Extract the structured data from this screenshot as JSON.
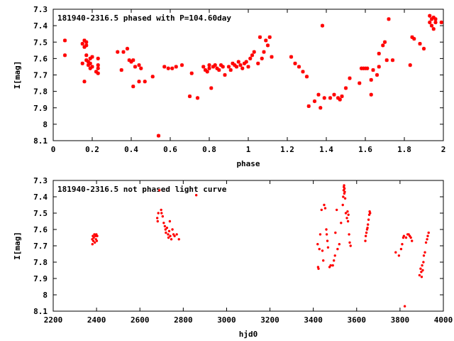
{
  "chart_data": [
    {
      "type": "scatter",
      "title": "181940-2316.5 phased with P=104.60day",
      "xlabel": "phase",
      "ylabel": "I[mag]",
      "xlim": [
        0,
        2
      ],
      "ylim": [
        7.3,
        8.1
      ],
      "y_inverted": true,
      "xticks": [
        "0",
        "0.2",
        "0.4",
        "0.6",
        "0.8",
        "1",
        "1.2",
        "1.4",
        "1.6",
        "1.8",
        "2"
      ],
      "yticks": [
        "7.3",
        "7.4",
        "7.5",
        "7.6",
        "7.7",
        "7.8",
        "7.9",
        "8",
        "8.1"
      ],
      "marker": "star",
      "color": "#ff0000",
      "points": [
        [
          0.06,
          7.49
        ],
        [
          0.06,
          7.58
        ],
        [
          0.15,
          7.51
        ],
        [
          0.16,
          7.49
        ],
        [
          0.16,
          7.53
        ],
        [
          0.17,
          7.5
        ],
        [
          0.17,
          7.52
        ],
        [
          0.15,
          7.63
        ],
        [
          0.16,
          7.74
        ],
        [
          0.17,
          7.58
        ],
        [
          0.17,
          7.61
        ],
        [
          0.18,
          7.62
        ],
        [
          0.18,
          7.64
        ],
        [
          0.19,
          7.6
        ],
        [
          0.19,
          7.63
        ],
        [
          0.2,
          7.59
        ],
        [
          0.2,
          7.65
        ],
        [
          0.19,
          7.66
        ],
        [
          0.23,
          7.6
        ],
        [
          0.23,
          7.66
        ],
        [
          0.22,
          7.68
        ],
        [
          0.23,
          7.69
        ],
        [
          0.23,
          7.64
        ],
        [
          0.33,
          7.56
        ],
        [
          0.35,
          7.67
        ],
        [
          0.36,
          7.56
        ],
        [
          0.38,
          7.54
        ],
        [
          0.39,
          7.61
        ],
        [
          0.4,
          7.62
        ],
        [
          0.41,
          7.61
        ],
        [
          0.42,
          7.65
        ],
        [
          0.41,
          7.77
        ],
        [
          0.44,
          7.64
        ],
        [
          0.44,
          7.74
        ],
        [
          0.45,
          7.66
        ],
        [
          0.47,
          7.74
        ],
        [
          0.51,
          7.71
        ],
        [
          0.54,
          8.07
        ],
        [
          0.57,
          7.65
        ],
        [
          0.59,
          7.66
        ],
        [
          0.61,
          7.66
        ],
        [
          0.63,
          7.65
        ],
        [
          0.66,
          7.64
        ],
        [
          0.7,
          7.83
        ],
        [
          0.71,
          7.69
        ],
        [
          0.74,
          7.84
        ],
        [
          0.77,
          7.65
        ],
        [
          0.78,
          7.67
        ],
        [
          0.79,
          7.68
        ],
        [
          0.8,
          7.64
        ],
        [
          0.8,
          7.66
        ],
        [
          0.81,
          7.78
        ],
        [
          0.82,
          7.65
        ],
        [
          0.83,
          7.64
        ],
        [
          0.84,
          7.66
        ],
        [
          0.85,
          7.67
        ],
        [
          0.86,
          7.64
        ],
        [
          0.87,
          7.65
        ],
        [
          0.88,
          7.7
        ],
        [
          0.9,
          7.65
        ],
        [
          0.91,
          7.67
        ],
        [
          0.92,
          7.63
        ],
        [
          0.93,
          7.64
        ],
        [
          0.94,
          7.65
        ],
        [
          0.95,
          7.62
        ],
        [
          0.96,
          7.64
        ],
        [
          0.97,
          7.66
        ],
        [
          0.98,
          7.63
        ],
        [
          0.99,
          7.62
        ],
        [
          1.0,
          7.65
        ],
        [
          1.01,
          7.6
        ],
        [
          1.02,
          7.58
        ],
        [
          1.03,
          7.56
        ],
        [
          1.05,
          7.63
        ],
        [
          1.06,
          7.47
        ],
        [
          1.07,
          7.6
        ],
        [
          1.08,
          7.56
        ],
        [
          1.09,
          7.49
        ],
        [
          1.1,
          7.52
        ],
        [
          1.11,
          7.47
        ],
        [
          1.12,
          7.59
        ],
        [
          1.22,
          7.59
        ],
        [
          1.24,
          7.63
        ],
        [
          1.26,
          7.65
        ],
        [
          1.28,
          7.68
        ],
        [
          1.3,
          7.71
        ],
        [
          1.31,
          7.89
        ],
        [
          1.34,
          7.86
        ],
        [
          1.36,
          7.82
        ],
        [
          1.37,
          7.9
        ],
        [
          1.38,
          7.4
        ],
        [
          1.39,
          7.84
        ],
        [
          1.42,
          7.84
        ],
        [
          1.44,
          7.82
        ],
        [
          1.46,
          7.84
        ],
        [
          1.47,
          7.85
        ],
        [
          1.48,
          7.83
        ],
        [
          1.5,
          7.78
        ],
        [
          1.52,
          7.72
        ],
        [
          1.57,
          7.75
        ],
        [
          1.58,
          7.66
        ],
        [
          1.59,
          7.66
        ],
        [
          1.6,
          7.66
        ],
        [
          1.61,
          7.66
        ],
        [
          1.63,
          7.82
        ],
        [
          1.63,
          7.73
        ],
        [
          1.64,
          7.67
        ],
        [
          1.66,
          7.7
        ],
        [
          1.67,
          7.65
        ],
        [
          1.67,
          7.57
        ],
        [
          1.69,
          7.52
        ],
        [
          1.7,
          7.5
        ],
        [
          1.71,
          7.61
        ],
        [
          1.72,
          7.36
        ],
        [
          1.74,
          7.61
        ],
        [
          1.83,
          7.64
        ],
        [
          1.84,
          7.47
        ],
        [
          1.85,
          7.48
        ],
        [
          1.88,
          7.51
        ],
        [
          1.9,
          7.54
        ],
        [
          1.93,
          7.34
        ],
        [
          1.93,
          7.38
        ],
        [
          1.94,
          7.36
        ],
        [
          1.94,
          7.4
        ],
        [
          1.95,
          7.35
        ],
        [
          1.95,
          7.42
        ],
        [
          1.96,
          7.38
        ],
        [
          1.96,
          7.36
        ],
        [
          1.99,
          7.38
        ]
      ]
    },
    {
      "type": "scatter",
      "title": "181940-2316.5 not phased light curve",
      "xlabel": "hjd0",
      "ylabel": "I[mag]",
      "xlim": [
        2200,
        4000
      ],
      "ylim": [
        7.3,
        8.1
      ],
      "y_inverted": true,
      "xticks": [
        "2200",
        "2400",
        "2600",
        "2800",
        "3000",
        "3200",
        "3400",
        "3600",
        "3800",
        "4000"
      ],
      "yticks": [
        "7.3",
        "7.4",
        "7.5",
        "7.6",
        "7.7",
        "7.8",
        "7.9",
        "8",
        "8.1"
      ],
      "marker": "dot",
      "color": "#ff0000",
      "points": [
        [
          2380,
          7.66
        ],
        [
          2381,
          7.69
        ],
        [
          2383,
          7.64
        ],
        [
          2385,
          7.67
        ],
        [
          2387,
          7.65
        ],
        [
          2390,
          7.63
        ],
        [
          2392,
          7.68
        ],
        [
          2395,
          7.64
        ],
        [
          2397,
          7.66
        ],
        [
          2399,
          7.63
        ],
        [
          2401,
          7.67
        ],
        [
          2403,
          7.64
        ],
        [
          2680,
          7.53
        ],
        [
          2682,
          7.55
        ],
        [
          2685,
          7.5
        ],
        [
          2690,
          7.36
        ],
        [
          2698,
          7.48
        ],
        [
          2700,
          7.5
        ],
        [
          2705,
          7.52
        ],
        [
          2710,
          7.56
        ],
        [
          2715,
          7.58
        ],
        [
          2718,
          7.6
        ],
        [
          2720,
          7.62
        ],
        [
          2725,
          7.59
        ],
        [
          2730,
          7.63
        ],
        [
          2732,
          7.65
        ],
        [
          2735,
          7.61
        ],
        [
          2738,
          7.55
        ],
        [
          2740,
          7.64
        ],
        [
          2745,
          7.66
        ],
        [
          2750,
          7.6
        ],
        [
          2755,
          7.63
        ],
        [
          2760,
          7.64
        ],
        [
          2770,
          7.63
        ],
        [
          2780,
          7.66
        ],
        [
          2860,
          7.39
        ],
        [
          3420,
          7.69
        ],
        [
          3422,
          7.83
        ],
        [
          3424,
          7.84
        ],
        [
          3428,
          7.72
        ],
        [
          3432,
          7.63
        ],
        [
          3438,
          7.48
        ],
        [
          3442,
          7.73
        ],
        [
          3446,
          7.79
        ],
        [
          3450,
          7.45
        ],
        [
          3455,
          7.47
        ],
        [
          3460,
          7.6
        ],
        [
          3462,
          7.63
        ],
        [
          3465,
          7.67
        ],
        [
          3468,
          7.71
        ],
        [
          3475,
          7.83
        ],
        [
          3480,
          7.82
        ],
        [
          3490,
          7.82
        ],
        [
          3495,
          7.79
        ],
        [
          3500,
          7.76
        ],
        [
          3502,
          7.62
        ],
        [
          3508,
          7.48
        ],
        [
          3512,
          7.72
        ],
        [
          3520,
          7.69
        ],
        [
          3528,
          7.56
        ],
        [
          3536,
          7.45
        ],
        [
          3538,
          7.4
        ],
        [
          3540,
          7.36
        ],
        [
          3541,
          7.34
        ],
        [
          3542,
          7.33
        ],
        [
          3543,
          7.38
        ],
        [
          3544,
          7.35
        ],
        [
          3545,
          7.37
        ],
        [
          3547,
          7.41
        ],
        [
          3550,
          7.5
        ],
        [
          3555,
          7.53
        ],
        [
          3558,
          7.49
        ],
        [
          3560,
          7.55
        ],
        [
          3562,
          7.51
        ],
        [
          3565,
          7.63
        ],
        [
          3568,
          7.68
        ],
        [
          3572,
          7.7
        ],
        [
          3640,
          7.67
        ],
        [
          3642,
          7.64
        ],
        [
          3645,
          7.62
        ],
        [
          3648,
          7.6
        ],
        [
          3650,
          7.59
        ],
        [
          3652,
          7.57
        ],
        [
          3655,
          7.54
        ],
        [
          3658,
          7.51
        ],
        [
          3660,
          7.49
        ],
        [
          3662,
          7.5
        ],
        [
          3780,
          7.74
        ],
        [
          3795,
          7.76
        ],
        [
          3805,
          7.72
        ],
        [
          3810,
          7.69
        ],
        [
          3815,
          7.65
        ],
        [
          3818,
          7.64
        ],
        [
          3822,
          8.07
        ],
        [
          3828,
          7.65
        ],
        [
          3835,
          7.63
        ],
        [
          3840,
          7.63
        ],
        [
          3845,
          7.64
        ],
        [
          3850,
          7.65
        ],
        [
          3855,
          7.67
        ],
        [
          3890,
          7.88
        ],
        [
          3895,
          7.84
        ],
        [
          3898,
          7.86
        ],
        [
          3900,
          7.89
        ],
        [
          3902,
          7.82
        ],
        [
          3905,
          7.85
        ],
        [
          3908,
          7.8
        ],
        [
          3910,
          7.76
        ],
        [
          3915,
          7.74
        ],
        [
          3920,
          7.68
        ],
        [
          3925,
          7.66
        ],
        [
          3928,
          7.64
        ],
        [
          3932,
          7.62
        ]
      ]
    }
  ]
}
